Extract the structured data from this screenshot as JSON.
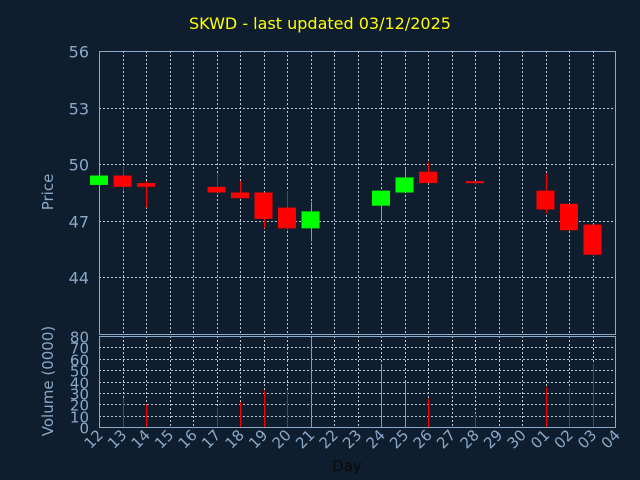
{
  "chart_data": [
    {
      "type": "candlestick",
      "title": "SKWD - last updated 03/12/2025",
      "ylabel": "Price",
      "ylim": [
        41,
        56
      ],
      "yticks": [
        44,
        47,
        50,
        53,
        56
      ],
      "grid": true,
      "x_tick_labels": [
        "12",
        "13",
        "14",
        "15",
        "16",
        "17",
        "18",
        "19",
        "20",
        "21",
        "22",
        "23",
        "24",
        "25",
        "26",
        "27",
        "28",
        "29",
        "30",
        "01",
        "02",
        "03",
        "04"
      ],
      "candles": [
        {
          "x": 0,
          "open": 48.9,
          "close": 49.4,
          "high": 49.4,
          "low": 48.9,
          "color": "#00ff00"
        },
        {
          "x": 1,
          "open": 49.4,
          "close": 48.8,
          "high": 49.9,
          "low": 48.6,
          "color": "#ff0000"
        },
        {
          "x": 2,
          "open": 49.0,
          "close": 48.8,
          "high": 49.1,
          "low": 47.7,
          "color": "#ff0000"
        },
        {
          "x": 5,
          "open": 48.8,
          "close": 48.5,
          "high": 49.5,
          "low": 48.4,
          "color": "#ff0000"
        },
        {
          "x": 6,
          "open": 48.5,
          "close": 48.2,
          "high": 49.1,
          "low": 48.2,
          "color": "#ff0000"
        },
        {
          "x": 7,
          "open": 48.5,
          "close": 47.1,
          "high": 48.5,
          "low": 46.6,
          "color": "#ff0000"
        },
        {
          "x": 8,
          "open": 47.7,
          "close": 46.6,
          "high": 48.6,
          "low": 46.5,
          "color": "#ff0000"
        },
        {
          "x": 9,
          "open": 46.6,
          "close": 47.5,
          "high": 48.0,
          "low": 45.9,
          "color": "#00ff00"
        },
        {
          "x": 12,
          "open": 47.8,
          "close": 48.6,
          "high": 48.6,
          "low": 47.1,
          "color": "#00ff00"
        },
        {
          "x": 13,
          "open": 48.5,
          "close": 49.3,
          "high": 49.8,
          "low": 48.5,
          "color": "#00ff00"
        },
        {
          "x": 14,
          "open": 49.6,
          "close": 49.0,
          "high": 50.1,
          "low": 49.0,
          "color": "#ff0000"
        },
        {
          "x": 16,
          "open": 49.1,
          "close": 49.0,
          "high": 49.1,
          "low": 48.9,
          "color": "#ff0000"
        },
        {
          "x": 19,
          "open": 48.6,
          "close": 47.6,
          "high": 49.5,
          "low": 47.4,
          "color": "#ff0000"
        },
        {
          "x": 20,
          "open": 47.9,
          "close": 46.5,
          "high": 47.9,
          "low": 46.5,
          "color": "#ff0000"
        },
        {
          "x": 21,
          "open": 46.8,
          "close": 45.2,
          "high": 46.8,
          "low": 45.1,
          "color": "#ff0000"
        }
      ]
    },
    {
      "type": "bar",
      "xlabel": "Day",
      "ylabel": "Volume (0000)",
      "ylim": [
        0,
        80
      ],
      "yticks": [
        0,
        10,
        20,
        30,
        40,
        50,
        60,
        70,
        80
      ],
      "grid": true,
      "x_tick_labels": [
        "12",
        "13",
        "14",
        "15",
        "16",
        "17",
        "18",
        "19",
        "20",
        "21",
        "22",
        "23",
        "24",
        "25",
        "26",
        "27",
        "28",
        "29",
        "30",
        "01",
        "02",
        "03",
        "04"
      ],
      "bars": [
        {
          "x": 1,
          "value": 25,
          "color": "#ff0000"
        },
        {
          "x": 2,
          "value": 20,
          "color": "#ff0000"
        },
        {
          "x": 5,
          "value": 17,
          "color": "#ff0000"
        },
        {
          "x": 6,
          "value": 22,
          "color": "#ff0000"
        },
        {
          "x": 7,
          "value": 32,
          "color": "#ff0000"
        },
        {
          "x": 8,
          "value": 32,
          "color": "#ff0000"
        },
        {
          "x": 9,
          "value": 78,
          "color": "#00ff00"
        },
        {
          "x": 12,
          "value": 55,
          "color": "#00ff00"
        },
        {
          "x": 13,
          "value": 40,
          "color": "#00ff00"
        },
        {
          "x": 14,
          "value": 25,
          "color": "#ff0000"
        },
        {
          "x": 16,
          "value": 12,
          "color": "#ff0000"
        },
        {
          "x": 19,
          "value": 35,
          "color": "#ff0000"
        },
        {
          "x": 20,
          "value": 35,
          "color": "#ff0000"
        },
        {
          "x": 21,
          "value": 56,
          "color": "#ff0000"
        }
      ]
    }
  ],
  "colors": {
    "background": "#0f1e2e",
    "title": "#ffff00",
    "axis_text": "#8aa8c8",
    "grid": "#bfc8d2",
    "up": "#00ff00",
    "down": "#ff0000"
  }
}
